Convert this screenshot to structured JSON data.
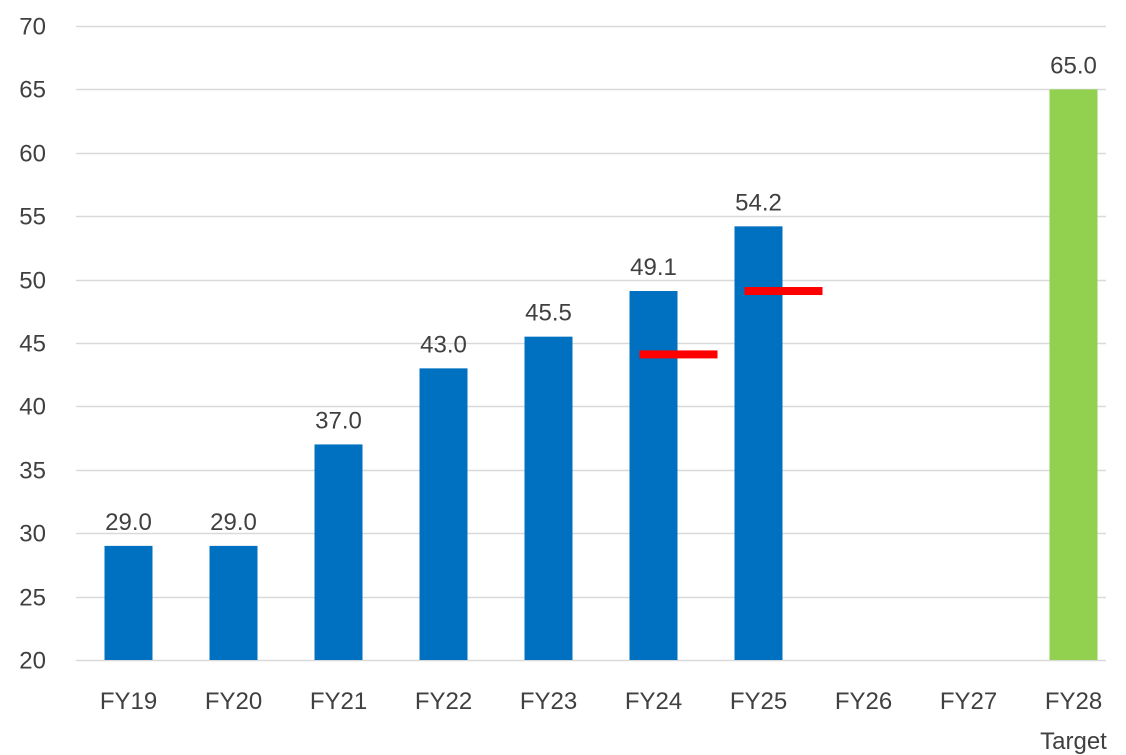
{
  "chart_data": {
    "type": "bar",
    "categories": [
      "FY19",
      "FY20",
      "FY21",
      "FY22",
      "FY23",
      "FY24",
      "FY25",
      "FY26",
      "FY27",
      "FY28"
    ],
    "category_sublabels": [
      "",
      "",
      "",
      "",
      "",
      "",
      "",
      "",
      "",
      "Target"
    ],
    "series": [
      {
        "values": [
          29.0,
          29.0,
          37.0,
          43.0,
          45.5,
          49.1,
          54.2,
          null,
          null,
          65.0
        ],
        "data_labels": [
          "29.0",
          "29.0",
          "37.0",
          "43.0",
          "45.5",
          "49.1",
          "54.2",
          "",
          "",
          "65.0"
        ]
      }
    ],
    "markers": [
      {
        "category": "FY24",
        "value": 44.1
      },
      {
        "category": "FY25",
        "value": 49.1
      }
    ],
    "ylim": [
      20,
      70
    ],
    "yticks": [
      20,
      25,
      30,
      35,
      40,
      45,
      50,
      55,
      60,
      65,
      70
    ],
    "grid": true,
    "title": "",
    "xlabel": "",
    "ylabel": "",
    "colors": {
      "bar": "#0070C0",
      "target_bar": "#92D050",
      "marker": "#FF0000",
      "grid": "#D9D9D9",
      "text": "#404040"
    }
  }
}
